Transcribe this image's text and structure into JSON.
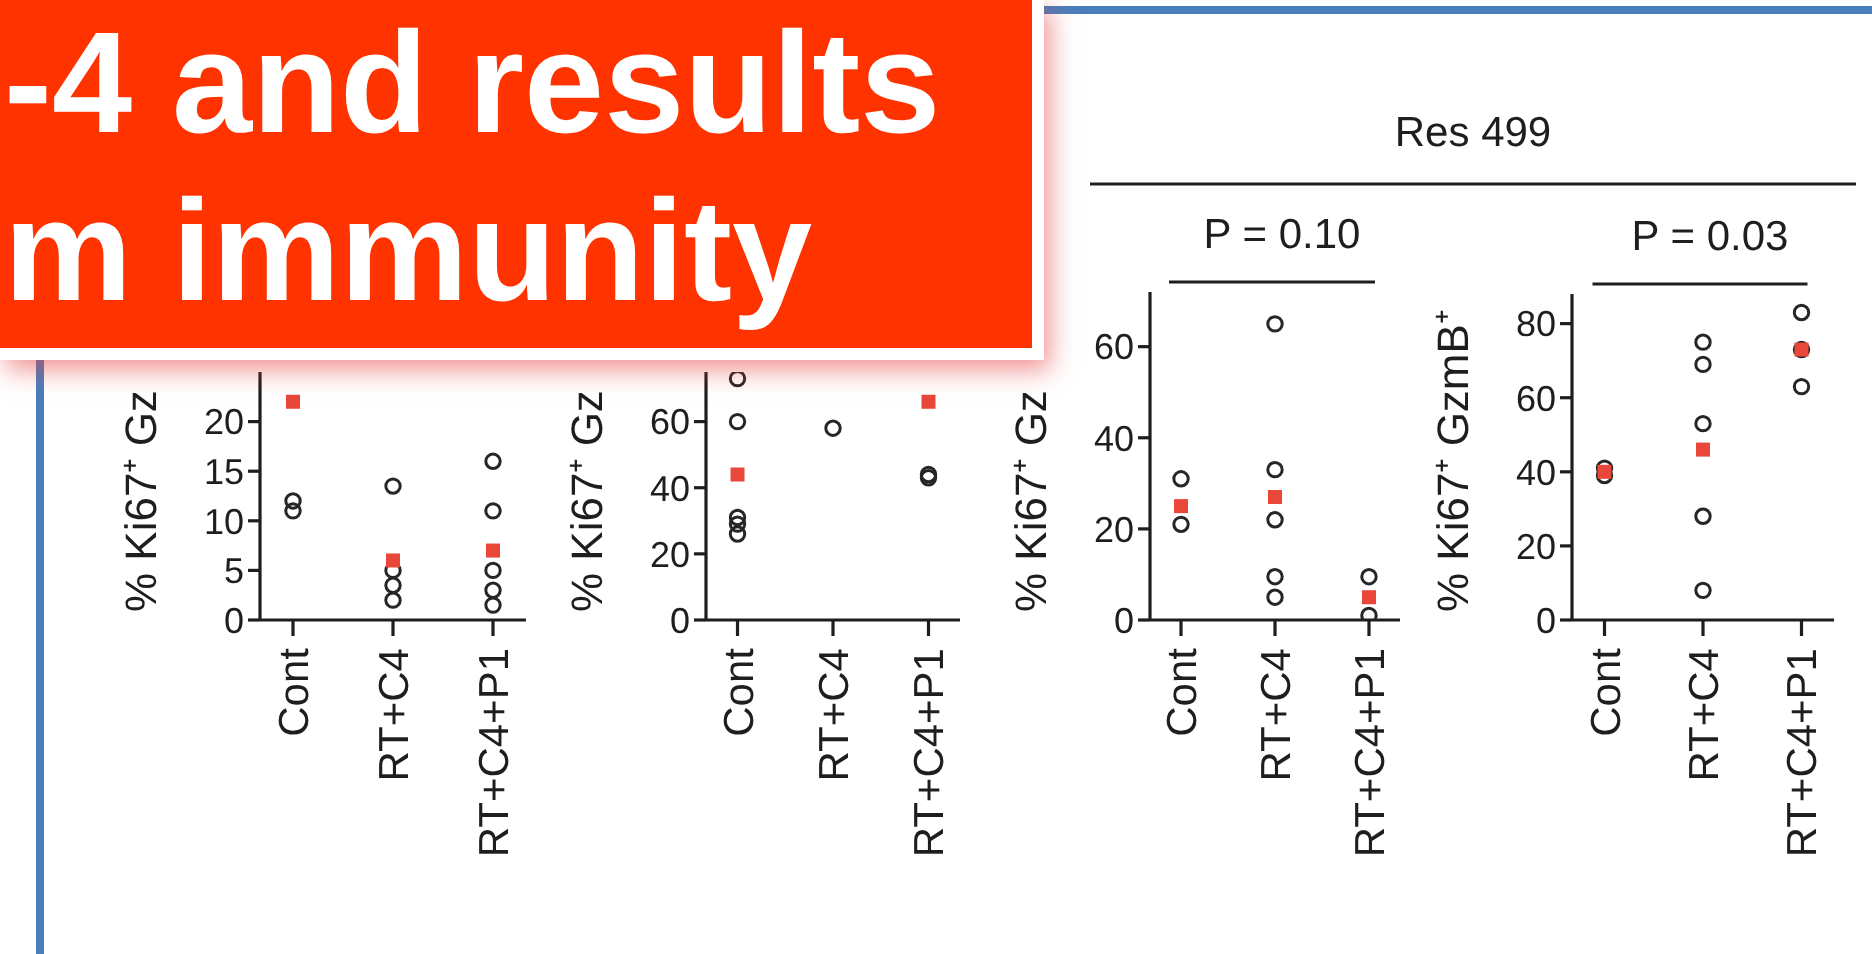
{
  "chart_data": [
    {
      "type": "scatter",
      "title": "-4 and results m immunity",
      "categories": [
        "Cont",
        "RT+C4",
        "RT+C4+P1"
      ],
      "ylabel": "% Ki67⁺ Gz",
      "ylim": [
        0,
        25
      ],
      "yticks": [
        0,
        5,
        10,
        15,
        20
      ],
      "marker": "circle",
      "series": [
        {
          "color": "#262626",
          "x": [
            "Cont",
            "Cont",
            "RT+C4",
            "RT+C4",
            "RT+C4",
            "RT+C4",
            "RT+C4+P1",
            "RT+C4+P1",
            "RT+C4+P1",
            "RT+C4+P1",
            "RT+C4+P1"
          ],
          "values": [
            11,
            12,
            13.5,
            5,
            3.5,
            2,
            16,
            11,
            5,
            3,
            1.5
          ]
        },
        {
          "type": "scatter",
          "marker": "square",
          "color": "#e8473a",
          "x": [
            "Cont",
            "RT+C4",
            "RT+C4+P1"
          ],
          "values": [
            22,
            6,
            7
          ]
        }
      ]
    },
    {
      "type": "scatter",
      "categories": [
        "Cont",
        "RT+C4",
        "RT+C4+P1"
      ],
      "ylabel": "% Ki67⁺ Gz",
      "ylim": [
        0,
        75
      ],
      "yticks": [
        0,
        20,
        40,
        60
      ],
      "marker": "circle",
      "series": [
        {
          "color": "#262626",
          "x": [
            "Cont",
            "Cont",
            "Cont",
            "Cont",
            "Cont",
            "RT+C4",
            "RT+C4+P1",
            "RT+C4+P1"
          ],
          "values": [
            73,
            60,
            31,
            29,
            26,
            58,
            44,
            43
          ]
        },
        {
          "type": "scatter",
          "marker": "square",
          "color": "#e8473a",
          "x": [
            "Cont",
            "RT+C4+P1"
          ],
          "values": [
            44,
            66
          ]
        }
      ]
    },
    {
      "type": "scatter",
      "title": "Res 499",
      "categories": [
        "Cont",
        "RT+C4",
        "RT+C4+P1"
      ],
      "ylabel": "% Ki67⁺ Gz",
      "ylim": [
        0,
        72
      ],
      "yticks": [
        0,
        20,
        40,
        60
      ],
      "marker": "circle",
      "annotations": [
        "P = 0.10"
      ],
      "series": [
        {
          "color": "#262626",
          "x": [
            "Cont",
            "Cont",
            "RT+C4",
            "RT+C4",
            "RT+C4",
            "RT+C4",
            "RT+C4",
            "RT+C4+P1",
            "RT+C4+P1"
          ],
          "values": [
            31,
            21,
            65,
            33,
            22,
            9.5,
            5,
            9.5,
            1
          ]
        },
        {
          "type": "scatter",
          "marker": "square",
          "color": "#e8473a",
          "x": [
            "Cont",
            "RT+C4",
            "RT+C4+P1"
          ],
          "values": [
            25,
            27,
            5
          ]
        }
      ]
    },
    {
      "type": "scatter",
      "categories": [
        "Cont",
        "RT+C4",
        "RT+C4+P1"
      ],
      "ylabel": "% Ki67⁺ GzmB⁺",
      "ylim": [
        0,
        88
      ],
      "yticks": [
        0,
        20,
        40,
        60,
        80
      ],
      "marker": "circle",
      "annotations": [
        "P = 0.03"
      ],
      "series": [
        {
          "color": "#262626",
          "x": [
            "Cont",
            "Cont",
            "RT+C4",
            "RT+C4",
            "RT+C4",
            "RT+C4",
            "RT+C4",
            "RT+C4+P1",
            "RT+C4+P1",
            "RT+C4+P1"
          ],
          "values": [
            39,
            41,
            75,
            69,
            53,
            28,
            8,
            83,
            73,
            63
          ]
        },
        {
          "type": "scatter",
          "marker": "square",
          "color": "#e8473a",
          "x": [
            "Cont",
            "RT+C4",
            "RT+C4+P1"
          ],
          "values": [
            40,
            46,
            73
          ]
        }
      ]
    }
  ]
}
